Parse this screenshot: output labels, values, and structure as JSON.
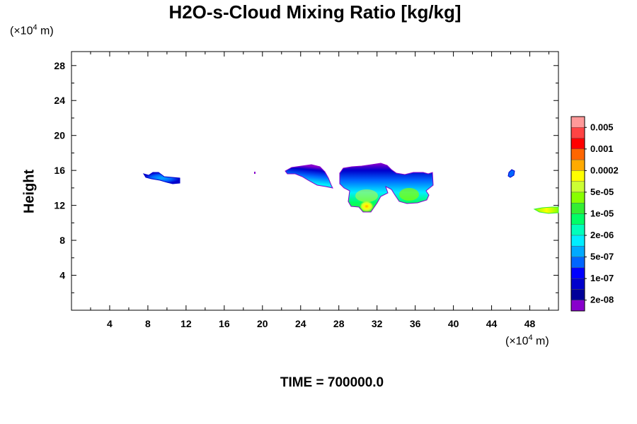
{
  "chart_data": {
    "type": "contour",
    "title": "H2O-s-Cloud Mixing Ratio [kg/kg]",
    "ylabel": "Height",
    "x_unit_base": "(×10",
    "x_unit_exp": "4",
    "x_unit_tail": " m)",
    "y_unit_base": "(×10",
    "y_unit_exp": "4",
    "y_unit_tail": " m)",
    "xlim": [
      0,
      51
    ],
    "ylim": [
      0,
      29.6
    ],
    "x_ticks": [
      "4",
      "8",
      "12",
      "16",
      "20",
      "24",
      "28",
      "32",
      "36",
      "40",
      "44",
      "48"
    ],
    "y_ticks": [
      "4",
      "8",
      "12",
      "16",
      "20",
      "24",
      "28"
    ],
    "time_label": "TIME = 700000.0",
    "colorbar": {
      "labels": [
        "0.005",
        "0.001",
        "0.0002",
        "5e-05",
        "1e-05",
        "2e-06",
        "5e-07",
        "1e-07",
        "2e-08"
      ],
      "colors": [
        "#ff9999",
        "#ff4444",
        "#ff0000",
        "#ff6600",
        "#ffaa00",
        "#ffff00",
        "#ccff33",
        "#88ff00",
        "#33ee33",
        "#00ff66",
        "#00ffbb",
        "#00eeff",
        "#00aaff",
        "#0066ff",
        "#0000ff",
        "#0000cc",
        "#000099",
        "#8800cc"
      ]
    },
    "features": [
      {
        "name": "cloud-near-x9",
        "x_center": 9.5,
        "y_center": 15.3,
        "top": 15.9,
        "bottom": 14.7,
        "x_min": 7.6,
        "x_max": 11.2,
        "max_level": "5e-07"
      },
      {
        "name": "cloud-dot-x19",
        "x_center": 19.3,
        "y_center": 15.8,
        "max_level": "2e-08"
      },
      {
        "name": "main-cloud-x22-28",
        "x_min": 22.6,
        "x_max": 27.3,
        "top": 16.5,
        "bottom": 14.3,
        "max_level": "2e-06"
      },
      {
        "name": "main-cloud-x28-38",
        "x_min": 28.0,
        "x_max": 37.8,
        "top": 17.0,
        "bottom": 11.6,
        "max_level": "0.0002"
      },
      {
        "name": "cloud-near-x46",
        "x_center": 46.1,
        "y_center": 15.9,
        "max_level": "1e-07"
      },
      {
        "name": "cloud-edge-x49",
        "x_min": 48.7,
        "x_max": 51,
        "top": 11.9,
        "bottom": 11.4,
        "max_level": "5e-05"
      }
    ]
  }
}
